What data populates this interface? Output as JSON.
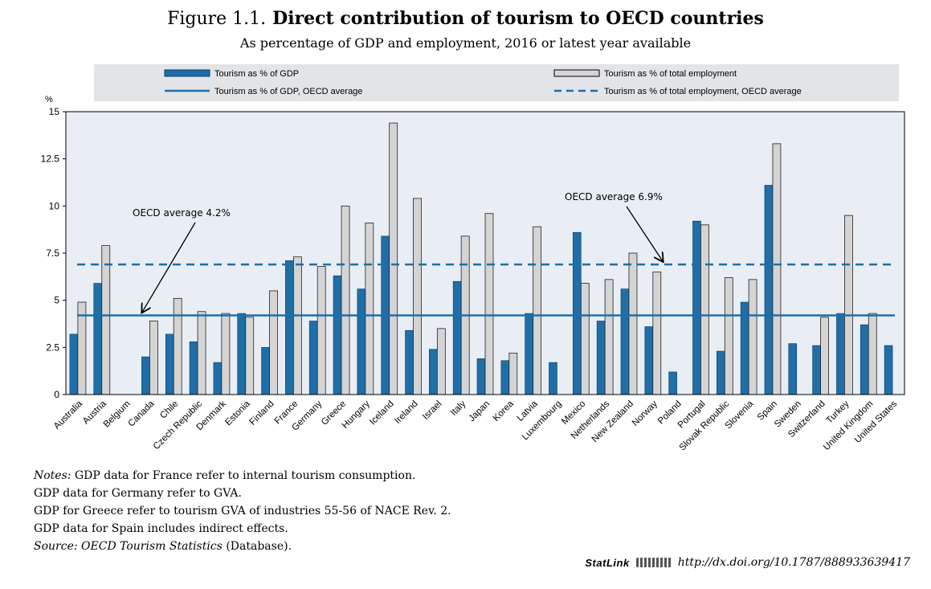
{
  "header": {
    "figure_number": "Figure 1.1.",
    "title": "Direct contribution of tourism to OECD countries",
    "subtitle": "As percentage of GDP and employment, 2016 or latest year available"
  },
  "chart_data": {
    "type": "bar",
    "ylabel": "%",
    "ylim": [
      0,
      15
    ],
    "yticks": [
      "0",
      "2.5",
      "5",
      "7.5",
      "10",
      "12.5",
      "15"
    ],
    "grid": false,
    "legend_placement": "top",
    "categories": [
      "Australia",
      "Austria",
      "Belgium",
      "Canada",
      "Chile",
      "Czech Republic",
      "Denmark",
      "Estonia",
      "Finland",
      "France",
      "Germany",
      "Greece",
      "Hungary",
      "Iceland",
      "Ireland",
      "Israel",
      "Italy",
      "Japan",
      "Korea",
      "Latvia",
      "Luxembourg",
      "Mexico",
      "Netherlands",
      "New Zealand",
      "Norway",
      "Poland",
      "Portugal",
      "Slovak Republic",
      "Slovenia",
      "Spain",
      "Sweden",
      "Switzerland",
      "Turkey",
      "United Kingdom",
      "United States"
    ],
    "series": [
      {
        "name": "Tourism as % of GDP",
        "color": "#1f6ea8",
        "values": [
          3.2,
          5.9,
          null,
          2.0,
          3.2,
          2.8,
          1.7,
          4.3,
          2.5,
          7.1,
          3.9,
          6.3,
          5.6,
          8.4,
          3.4,
          2.4,
          6.0,
          1.9,
          1.8,
          4.3,
          1.7,
          8.6,
          3.9,
          5.6,
          3.6,
          1.2,
          9.2,
          2.3,
          4.9,
          11.1,
          2.7,
          2.6,
          4.3,
          3.7,
          2.6
        ]
      },
      {
        "name": "Tourism as % of total employment",
        "color": "#d4d4d4",
        "values": [
          4.9,
          7.9,
          null,
          3.9,
          5.1,
          4.4,
          4.3,
          4.1,
          5.5,
          7.3,
          6.8,
          10.0,
          9.1,
          14.4,
          10.4,
          3.5,
          8.4,
          9.6,
          2.2,
          8.9,
          null,
          5.9,
          6.1,
          7.5,
          6.5,
          null,
          9.0,
          6.2,
          6.1,
          13.3,
          null,
          4.1,
          9.5,
          4.3,
          null
        ]
      }
    ],
    "reference_lines": [
      {
        "name": "Tourism as % of GDP, OECD average",
        "value": 4.2,
        "style": "solid",
        "color": "#1f6ea8"
      },
      {
        "name": "Tourism as % of total employment, OECD average",
        "value": 6.9,
        "style": "dashed",
        "color": "#1f6ea8"
      }
    ],
    "annotations": [
      {
        "text": "OECD average 4.2%",
        "target": 4.2
      },
      {
        "text": "OECD average 6.9%",
        "target": 6.9
      }
    ]
  },
  "notes": {
    "prefix": "Notes:",
    "line1": "GDP data for France refer to internal tourism consumption.",
    "line2": "GDP data for Germany refer to GVA.",
    "line3": "GDP for Greece refer to tourism GVA of industries 55-56 of NACE Rev. 2.",
    "line4": "GDP data for Spain includes indirect effects.",
    "source_prefix": "Source:",
    "source_name": "OECD Tourism Statistics",
    "source_suffix": "(Database)."
  },
  "statlink": {
    "label": "StatLink",
    "url": "http://dx.doi.org/10.1787/888933639417"
  }
}
